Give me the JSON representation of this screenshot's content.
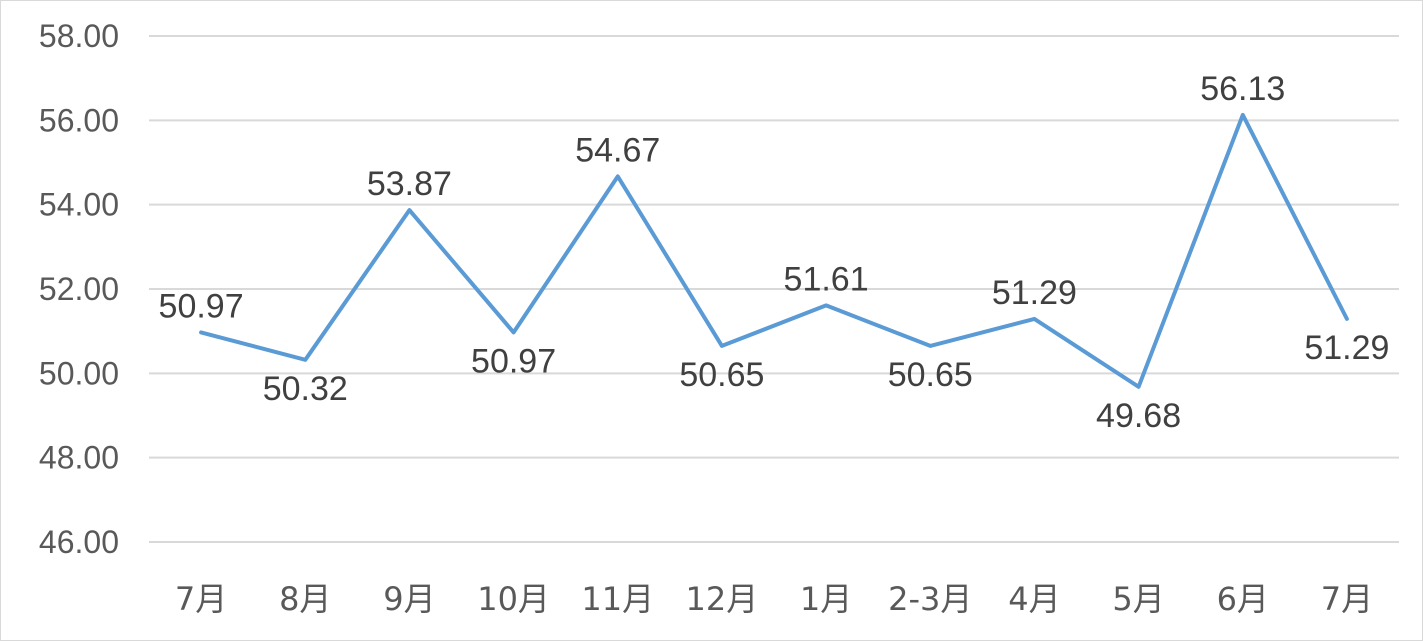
{
  "chart_data": {
    "type": "line",
    "categories": [
      "7月",
      "8月",
      "9月",
      "10月",
      "11月",
      "12月",
      "1月",
      "2-3月",
      "4月",
      "5月",
      "6月",
      "7月"
    ],
    "series": [
      {
        "values": [
          50.97,
          50.32,
          53.87,
          50.97,
          54.67,
          50.65,
          51.61,
          50.65,
          51.29,
          49.68,
          56.13,
          51.29
        ]
      }
    ],
    "data_labels": [
      "50.97",
      "50.32",
      "53.87",
      "50.97",
      "54.67",
      "50.65",
      "51.61",
      "50.65",
      "51.29",
      "49.68",
      "56.13",
      "51.29"
    ],
    "y_ticks": [
      "46.00",
      "48.00",
      "50.00",
      "52.00",
      "54.00",
      "56.00",
      "58.00"
    ],
    "ylim": [
      46,
      58
    ],
    "y_step": 2,
    "grid": true,
    "legend": "none",
    "title": "",
    "xlabel": "",
    "ylabel": "",
    "colors": {
      "line": "#5b9bd5",
      "grid": "#d9d9d9",
      "tick_text": "#595959",
      "label_text": "#404040"
    }
  }
}
